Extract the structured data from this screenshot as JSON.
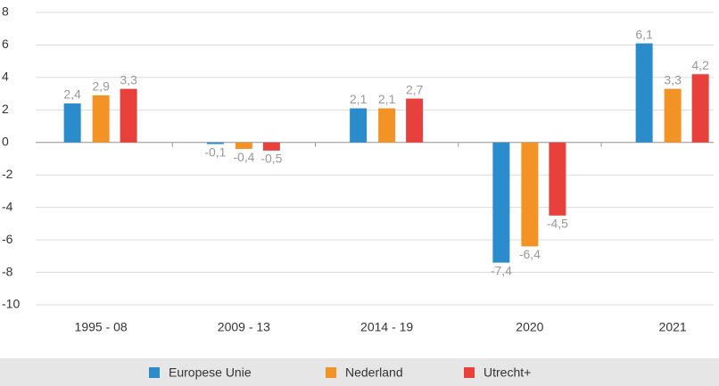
{
  "chart_data": {
    "type": "bar",
    "categories": [
      "1995 - 08",
      "2009 - 13",
      "2014 - 19",
      "2020",
      "2021"
    ],
    "series": [
      {
        "name": "Europese Unie",
        "color": "#2b8ccc",
        "values": [
          2.4,
          -0.1,
          2.1,
          -7.4,
          6.1
        ],
        "value_labels": [
          "2,4",
          "-0,1",
          "2,1",
          "-7,4",
          "6,1"
        ]
      },
      {
        "name": "Nederland",
        "color": "#f39325",
        "values": [
          2.9,
          -0.4,
          2.1,
          -6.4,
          3.3
        ],
        "value_labels": [
          "2,9",
          "-0,4",
          "2,1",
          "-6,4",
          "3,3"
        ]
      },
      {
        "name": "Utrecht+",
        "color": "#e8403a",
        "values": [
          3.3,
          -0.5,
          2.7,
          -4.5,
          4.2
        ],
        "value_labels": [
          "3,3",
          "-0,5",
          "2,7",
          "-4,5",
          "4,2"
        ]
      }
    ],
    "ylim": [
      -10,
      8
    ],
    "yticks": [
      -10,
      -8,
      -6,
      -4,
      -2,
      0,
      2,
      4,
      6,
      8
    ],
    "grid": true,
    "legend": "bottom"
  }
}
